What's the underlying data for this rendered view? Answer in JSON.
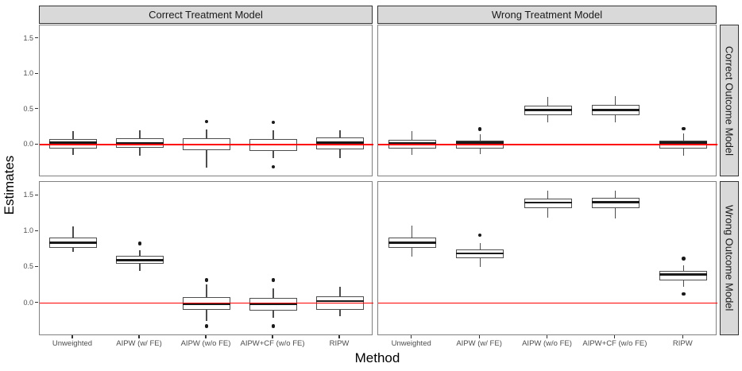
{
  "chart_data": {
    "type": "boxplot",
    "facet_layout": "2x2 grid (columns = treatment model, rows = outcome model)",
    "xlabel": "Method",
    "ylabel": "Estimates",
    "col_facets": [
      "Correct Treatment Model",
      "Wrong Treatment Model"
    ],
    "row_facets": [
      "Correct Outcome Model",
      "Wrong Outcome Model"
    ],
    "categories": [
      "Unweighted",
      "AIPW (w/ FE)",
      "AIPW (w/o FE)",
      "AIPW+CF (w/o FE)",
      "RIPW"
    ],
    "y_ticks": [
      1.5,
      1.0,
      0.5,
      0.0
    ],
    "ylim": [
      -0.46,
      1.69
    ],
    "reference_line_y": 0.0,
    "grid": false,
    "colors": {
      "reference_line": "#FF0000",
      "box_border": "#4D4D4D",
      "box_fill": "#FFFFFF",
      "median": "#1A1A1A",
      "outlier": "#1A1A1A",
      "strip_fill": "#D9D9D9",
      "panel_border": "#808080",
      "tick_label": "#4D4D4D"
    },
    "panels": [
      {
        "col": "Correct Treatment Model",
        "row": "Correct Outcome Model",
        "boxes": [
          {
            "category": "Unweighted",
            "whisker_low": -0.15,
            "q1": -0.06,
            "median": 0.03,
            "q3": 0.08,
            "whisker_high": 0.19,
            "outliers": []
          },
          {
            "category": "AIPW (w/ FE)",
            "whisker_low": -0.16,
            "q1": -0.05,
            "median": 0.02,
            "q3": 0.09,
            "whisker_high": 0.2,
            "outliers": []
          },
          {
            "category": "AIPW (w/o FE)",
            "whisker_low": -0.32,
            "q1": -0.08,
            "median": 0.0,
            "q3": 0.09,
            "whisker_high": 0.22,
            "outliers": [
              0.33
            ]
          },
          {
            "category": "AIPW+CF (w/o FE)",
            "whisker_low": -0.19,
            "q1": -0.09,
            "median": 0.0,
            "q3": 0.08,
            "whisker_high": 0.2,
            "outliers": [
              0.32,
              -0.31
            ]
          },
          {
            "category": "RIPW",
            "whisker_low": -0.19,
            "q1": -0.07,
            "median": 0.03,
            "q3": 0.1,
            "whisker_high": 0.21,
            "outliers": []
          }
        ]
      },
      {
        "col": "Wrong Treatment Model",
        "row": "Correct Outcome Model",
        "boxes": [
          {
            "category": "Unweighted",
            "whisker_low": -0.14,
            "q1": -0.05,
            "median": 0.02,
            "q3": 0.07,
            "whisker_high": 0.19,
            "outliers": []
          },
          {
            "category": "AIPW (w/ FE)",
            "whisker_low": -0.13,
            "q1": -0.06,
            "median": 0.03,
            "q3": 0.06,
            "whisker_high": 0.15,
            "outliers": [
              0.22
            ]
          },
          {
            "category": "AIPW (w/o FE)",
            "whisker_low": 0.32,
            "q1": 0.42,
            "median": 0.49,
            "q3": 0.55,
            "whisker_high": 0.68,
            "outliers": []
          },
          {
            "category": "AIPW+CF (w/o FE)",
            "whisker_low": 0.32,
            "q1": 0.42,
            "median": 0.49,
            "q3": 0.56,
            "whisker_high": 0.69,
            "outliers": []
          },
          {
            "category": "RIPW",
            "whisker_low": -0.16,
            "q1": -0.06,
            "median": 0.03,
            "q3": 0.06,
            "whisker_high": 0.16,
            "outliers": [
              0.23
            ]
          }
        ]
      },
      {
        "col": "Correct Treatment Model",
        "row": "Wrong Outcome Model",
        "boxes": [
          {
            "category": "Unweighted",
            "whisker_low": 0.71,
            "q1": 0.77,
            "median": 0.84,
            "q3": 0.92,
            "whisker_high": 1.07,
            "outliers": []
          },
          {
            "category": "AIPW (w/ FE)",
            "whisker_low": 0.45,
            "q1": 0.55,
            "median": 0.6,
            "q3": 0.66,
            "whisker_high": 0.74,
            "outliers": [
              0.83
            ]
          },
          {
            "category": "AIPW (w/o FE)",
            "whisker_low": -0.25,
            "q1": -0.1,
            "median": -0.01,
            "q3": 0.08,
            "whisker_high": 0.26,
            "outliers": [
              0.32,
              -0.32
            ]
          },
          {
            "category": "AIPW+CF (w/o FE)",
            "whisker_low": -0.21,
            "q1": -0.11,
            "median": -0.01,
            "q3": 0.07,
            "whisker_high": 0.21,
            "outliers": [
              0.32,
              -0.32
            ]
          },
          {
            "category": "RIPW",
            "whisker_low": -0.18,
            "q1": -0.09,
            "median": 0.03,
            "q3": 0.09,
            "whisker_high": 0.23,
            "outliers": []
          }
        ]
      },
      {
        "col": "Wrong Treatment Model",
        "row": "Wrong Outcome Model",
        "boxes": [
          {
            "category": "Unweighted",
            "whisker_low": 0.65,
            "q1": 0.77,
            "median": 0.84,
            "q3": 0.91,
            "whisker_high": 1.08,
            "outliers": []
          },
          {
            "category": "AIPW (w/ FE)",
            "whisker_low": 0.5,
            "q1": 0.62,
            "median": 0.69,
            "q3": 0.75,
            "whisker_high": 0.84,
            "outliers": [
              0.95
            ]
          },
          {
            "category": "AIPW (w/o FE)",
            "whisker_low": 1.19,
            "q1": 1.32,
            "median": 1.4,
            "q3": 1.46,
            "whisker_high": 1.57,
            "outliers": []
          },
          {
            "category": "AIPW+CF (w/o FE)",
            "whisker_low": 1.18,
            "q1": 1.32,
            "median": 1.41,
            "q3": 1.47,
            "whisker_high": 1.57,
            "outliers": []
          },
          {
            "category": "RIPW",
            "whisker_low": 0.23,
            "q1": 0.32,
            "median": 0.4,
            "q3": 0.45,
            "whisker_high": 0.53,
            "outliers": [
              0.62,
              0.13
            ]
          }
        ]
      }
    ]
  }
}
